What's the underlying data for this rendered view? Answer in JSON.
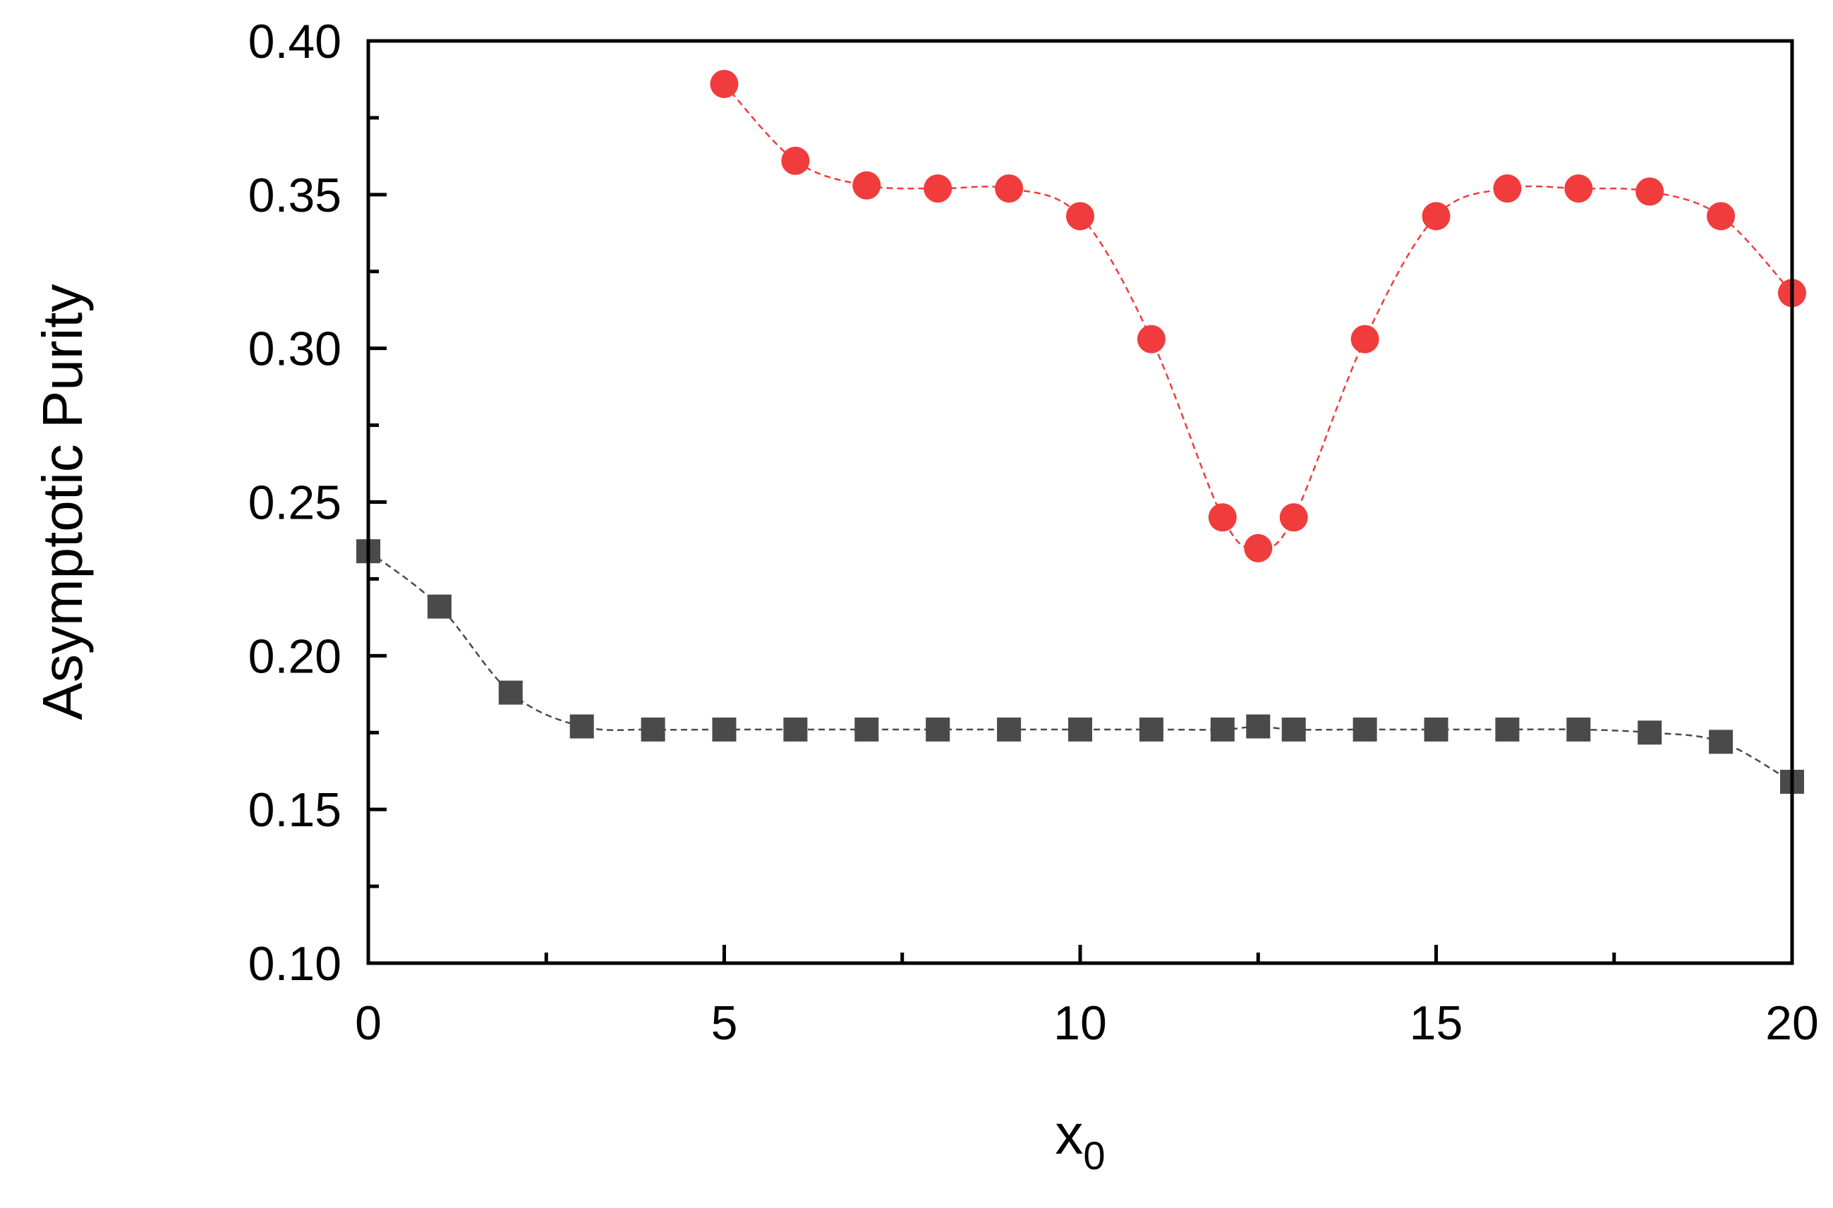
{
  "chart_data": {
    "type": "scatter",
    "title": "",
    "xlabel": "x",
    "xlabel_subscript": "0",
    "ylabel": "Asymptotic Purity",
    "xlim": [
      0,
      20
    ],
    "ylim": [
      0.1,
      0.4
    ],
    "xticks": [
      "0",
      "5",
      "10",
      "15",
      "20"
    ],
    "yticks": [
      "0.10",
      "0.15",
      "0.20",
      "0.25",
      "0.30",
      "0.35",
      "0.40"
    ],
    "grid": false,
    "legend": "none",
    "series": [
      {
        "marker": "circle",
        "color": "#f03c3c",
        "line_style": "dashed",
        "points": [
          [
            5,
            0.386
          ],
          [
            6,
            0.361
          ],
          [
            7,
            0.353
          ],
          [
            8,
            0.352
          ],
          [
            9,
            0.352
          ],
          [
            10,
            0.343
          ],
          [
            11,
            0.303
          ],
          [
            12,
            0.245
          ],
          [
            12.5,
            0.235
          ],
          [
            13,
            0.245
          ],
          [
            14,
            0.303
          ],
          [
            15,
            0.343
          ],
          [
            16,
            0.352
          ],
          [
            17,
            0.352
          ],
          [
            18,
            0.351
          ],
          [
            19,
            0.343
          ],
          [
            20,
            0.318
          ]
        ]
      },
      {
        "marker": "square",
        "color": "#4a4a4a",
        "line_style": "dashed",
        "points": [
          [
            0,
            0.234
          ],
          [
            1,
            0.216
          ],
          [
            2,
            0.188
          ],
          [
            3,
            0.177
          ],
          [
            4,
            0.176
          ],
          [
            5,
            0.176
          ],
          [
            6,
            0.176
          ],
          [
            7,
            0.176
          ],
          [
            8,
            0.176
          ],
          [
            9,
            0.176
          ],
          [
            10,
            0.176
          ],
          [
            11,
            0.176
          ],
          [
            12,
            0.176
          ],
          [
            12.5,
            0.177
          ],
          [
            13,
            0.176
          ],
          [
            14,
            0.176
          ],
          [
            15,
            0.176
          ],
          [
            16,
            0.176
          ],
          [
            17,
            0.176
          ],
          [
            18,
            0.175
          ],
          [
            19,
            0.172
          ],
          [
            20,
            0.159
          ]
        ]
      }
    ]
  }
}
